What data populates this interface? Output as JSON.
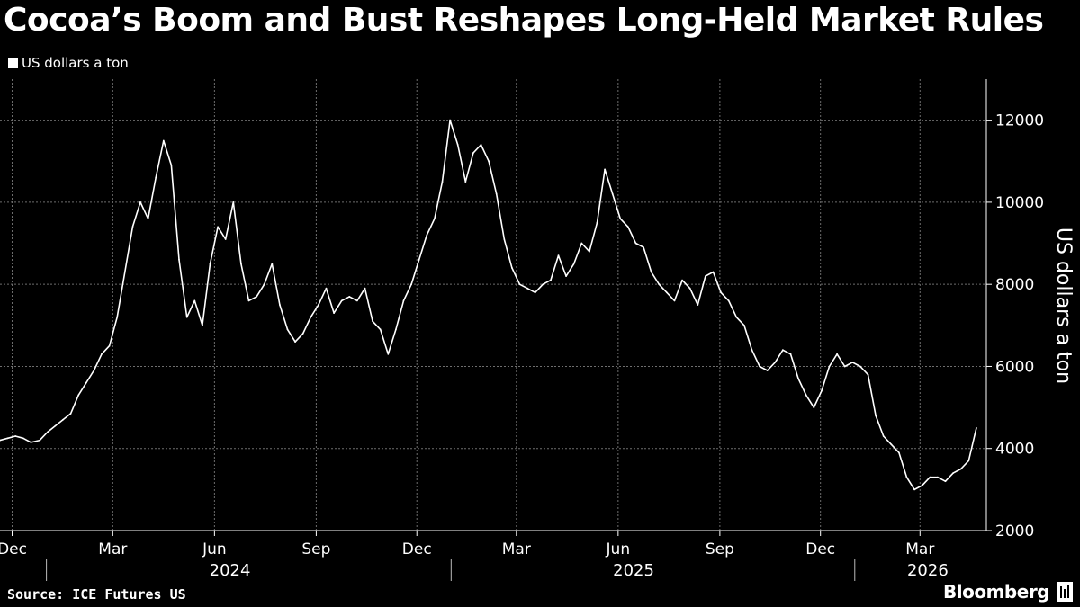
{
  "header": {
    "title": "Cocoa’s Boom and Bust Reshapes Long-Held Market Rules",
    "legend_label": "US dollars a ton"
  },
  "footer": {
    "source": "Source: ICE Futures US",
    "brand": "Bloomberg",
    "brand_icon": "bloomberg-terminal-icon"
  },
  "colors": {
    "background": "#000000",
    "line": "#ffffff",
    "grid": "#6e6e6e"
  },
  "chart_data": {
    "type": "line",
    "title": "Cocoa’s Boom and Bust Reshapes Long-Held Market Rules",
    "ylabel": "US dollars a ton",
    "y_axis_side": "right",
    "ylim": [
      2000,
      13000
    ],
    "yticks": [
      2000,
      4000,
      6000,
      8000,
      10000,
      12000
    ],
    "xlim": [
      "2023-11-20",
      "2026-04-30"
    ],
    "grid": true,
    "legend": "top-left",
    "x_ticks": [
      {
        "date": "2023-12-01",
        "label": "Dec"
      },
      {
        "date": "2024-03-01",
        "label": "Mar"
      },
      {
        "date": "2024-06-01",
        "label": "Jun"
      },
      {
        "date": "2024-09-01",
        "label": "Sep"
      },
      {
        "date": "2024-12-01",
        "label": "Dec"
      },
      {
        "date": "2025-03-01",
        "label": "Mar"
      },
      {
        "date": "2025-06-01",
        "label": "Jun"
      },
      {
        "date": "2025-09-01",
        "label": "Sep"
      },
      {
        "date": "2025-12-01",
        "label": "Dec"
      },
      {
        "date": "2026-03-01",
        "label": "Mar"
      }
    ],
    "year_labels": [
      {
        "label": "2024",
        "center": "2024-06-15"
      },
      {
        "label": "2025",
        "center": "2025-06-15"
      },
      {
        "label": "2026",
        "center": "2026-03-08"
      }
    ],
    "year_separators": [
      "2024-01-01",
      "2025-01-01",
      "2026-01-01"
    ],
    "series": [
      {
        "x": [
          "2023-11-20",
          "2023-11-27",
          "2023-12-04",
          "2023-12-11",
          "2023-12-18",
          "2023-12-26",
          "2024-01-02",
          "2024-01-09",
          "2024-01-16",
          "2024-01-23",
          "2024-01-30",
          "2024-02-06",
          "2024-02-13",
          "2024-02-20",
          "2024-02-27",
          "2024-03-05",
          "2024-03-12",
          "2024-03-19",
          "2024-03-26",
          "2024-04-02",
          "2024-04-09",
          "2024-04-16",
          "2024-04-23",
          "2024-04-30",
          "2024-05-07",
          "2024-05-14",
          "2024-05-21",
          "2024-05-28",
          "2024-06-04",
          "2024-06-11",
          "2024-06-18",
          "2024-06-25",
          "2024-07-02",
          "2024-07-09",
          "2024-07-16",
          "2024-07-23",
          "2024-07-30",
          "2024-08-06",
          "2024-08-13",
          "2024-08-20",
          "2024-08-27",
          "2024-09-03",
          "2024-09-10",
          "2024-09-17",
          "2024-09-24",
          "2024-10-01",
          "2024-10-08",
          "2024-10-15",
          "2024-10-22",
          "2024-10-29",
          "2024-11-05",
          "2024-11-12",
          "2024-11-19",
          "2024-11-26",
          "2024-12-03",
          "2024-12-10",
          "2024-12-17",
          "2024-12-24",
          "2024-12-31",
          "2025-01-07",
          "2025-01-14",
          "2025-01-21",
          "2025-01-28",
          "2025-02-04",
          "2025-02-11",
          "2025-02-18",
          "2025-02-25",
          "2025-03-04",
          "2025-03-11",
          "2025-03-18",
          "2025-03-25",
          "2025-04-01",
          "2025-04-08",
          "2025-04-15",
          "2025-04-22",
          "2025-04-29",
          "2025-05-06",
          "2025-05-13",
          "2025-05-20",
          "2025-05-27",
          "2025-06-03",
          "2025-06-10",
          "2025-06-17",
          "2025-06-24",
          "2025-07-01",
          "2025-07-08",
          "2025-07-15",
          "2025-07-22",
          "2025-07-29",
          "2025-08-05",
          "2025-08-12",
          "2025-08-19",
          "2025-08-26",
          "2025-09-02",
          "2025-09-09",
          "2025-09-16",
          "2025-09-23",
          "2025-09-30",
          "2025-10-07",
          "2025-10-14",
          "2025-10-21",
          "2025-10-28",
          "2025-11-04",
          "2025-11-11",
          "2025-11-18",
          "2025-11-25",
          "2025-12-02",
          "2025-12-09",
          "2025-12-16",
          "2025-12-23",
          "2025-12-30",
          "2026-01-06",
          "2026-01-13",
          "2026-01-20",
          "2026-01-27",
          "2026-02-03",
          "2026-02-10",
          "2026-02-17",
          "2026-02-24",
          "2026-03-03",
          "2026-03-10",
          "2026-03-17",
          "2026-03-24",
          "2026-03-31",
          "2026-04-07",
          "2026-04-14",
          "2026-04-21"
        ],
        "values": [
          4200,
          4250,
          4300,
          4250,
          4150,
          4200,
          4400,
          4550,
          4700,
          4850,
          5300,
          5600,
          5900,
          6300,
          6500,
          7200,
          8300,
          9400,
          10000,
          9600,
          10600,
          11500,
          10900,
          8600,
          7200,
          7600,
          7000,
          8500,
          9400,
          9100,
          10000,
          8500,
          7600,
          7700,
          8000,
          8500,
          7500,
          6900,
          6600,
          6800,
          7200,
          7500,
          7900,
          7300,
          7600,
          7700,
          7600,
          7900,
          7100,
          6900,
          6300,
          6900,
          7600,
          8000,
          8600,
          9200,
          9600,
          10500,
          12000,
          11400,
          10500,
          11200,
          11400,
          11000,
          10200,
          9100,
          8400,
          8000,
          7900,
          7800,
          8000,
          8100,
          8700,
          8200,
          8500,
          9000,
          8800,
          9500,
          10800,
          10200,
          9600,
          9400,
          9000,
          8900,
          8300,
          8000,
          7800,
          7600,
          8100,
          7900,
          7500,
          8200,
          8300,
          7800,
          7600,
          7200,
          7000,
          6400,
          6000,
          5900,
          6100,
          6400,
          6300,
          5700,
          5300,
          5000,
          5400,
          6000,
          6300,
          6000,
          6100,
          6000,
          5800,
          4800,
          4300,
          4100,
          3900,
          3300,
          3000,
          3100,
          3300,
          3300,
          3200,
          3400,
          3500,
          3700,
          4500
        ]
      }
    ]
  }
}
